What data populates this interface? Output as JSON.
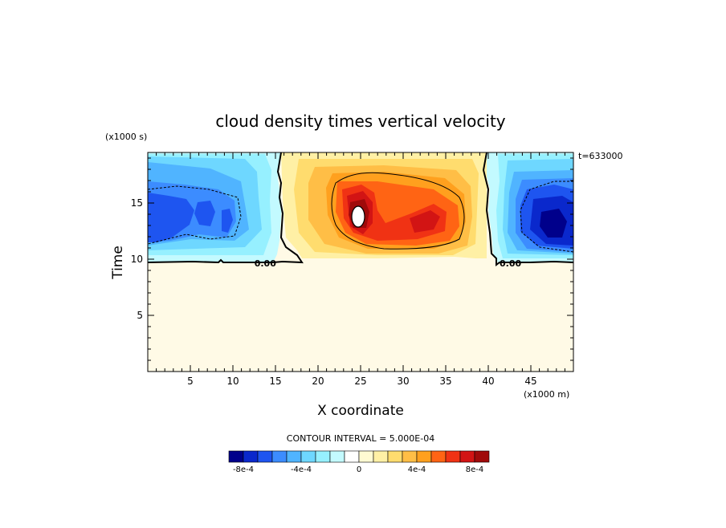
{
  "chart_data": {
    "type": "heatmap",
    "title": "cloud density times vertical velocity",
    "xlabel": "X coordinate",
    "ylabel": "Time",
    "x_scale_label": "(x1000 m)",
    "y_scale_label": "(x1000 s)",
    "time_stamp": "t=633000",
    "xlim": [
      0,
      50
    ],
    "ylim": [
      0,
      19.5
    ],
    "x_ticks": [
      {
        "value": 5,
        "label": "5"
      },
      {
        "value": 10,
        "label": "10"
      },
      {
        "value": 15,
        "label": "15"
      },
      {
        "value": 20,
        "label": "20"
      },
      {
        "value": 25,
        "label": "25"
      },
      {
        "value": 30,
        "label": "30"
      },
      {
        "value": 35,
        "label": "35"
      },
      {
        "value": 40,
        "label": "40"
      },
      {
        "value": 45,
        "label": "45"
      }
    ],
    "y_ticks": [
      {
        "value": 5,
        "label": "5"
      },
      {
        "value": 10,
        "label": "10"
      },
      {
        "value": 15,
        "label": "15"
      }
    ],
    "contour_labels": [
      {
        "x": 13.8,
        "y": 9.65,
        "text": "0.00"
      },
      {
        "x": 42.6,
        "y": 9.65,
        "text": "0.00"
      }
    ],
    "contour_interval_text": "CONTOUR INTERVAL = 5.000E-04",
    "colorbar": {
      "colors": [
        "#00008b",
        "#0a28cc",
        "#1e55f0",
        "#3c8cff",
        "#50b4ff",
        "#6ed7ff",
        "#96f0ff",
        "#c3faff",
        "#ffffff",
        "#fffad2",
        "#fff0a5",
        "#ffdc6e",
        "#ffbe46",
        "#ffa01e",
        "#ff6414",
        "#f03214",
        "#d21414",
        "#a00a0a"
      ],
      "tick_labels": [
        "-8e-4",
        "-4e-4",
        "0",
        "4e-4",
        "8e-4"
      ]
    },
    "regions": [
      {
        "name": "negative-left",
        "x_range": [
          0,
          17
        ],
        "y_range": [
          9.7,
          19.5
        ],
        "min_value": -0.00075
      },
      {
        "name": "positive-center",
        "x_range": [
          17,
          40
        ],
        "y_range": [
          10,
          19.5
        ],
        "max_value": 0.001
      },
      {
        "name": "negative-right",
        "x_range": [
          40,
          50
        ],
        "y_range": [
          9.7,
          19.5
        ],
        "min_value": -0.00095
      },
      {
        "name": "near-zero-background",
        "x_range": [
          0,
          50
        ],
        "y_range": [
          0,
          9.7
        ],
        "value": 0
      }
    ]
  }
}
